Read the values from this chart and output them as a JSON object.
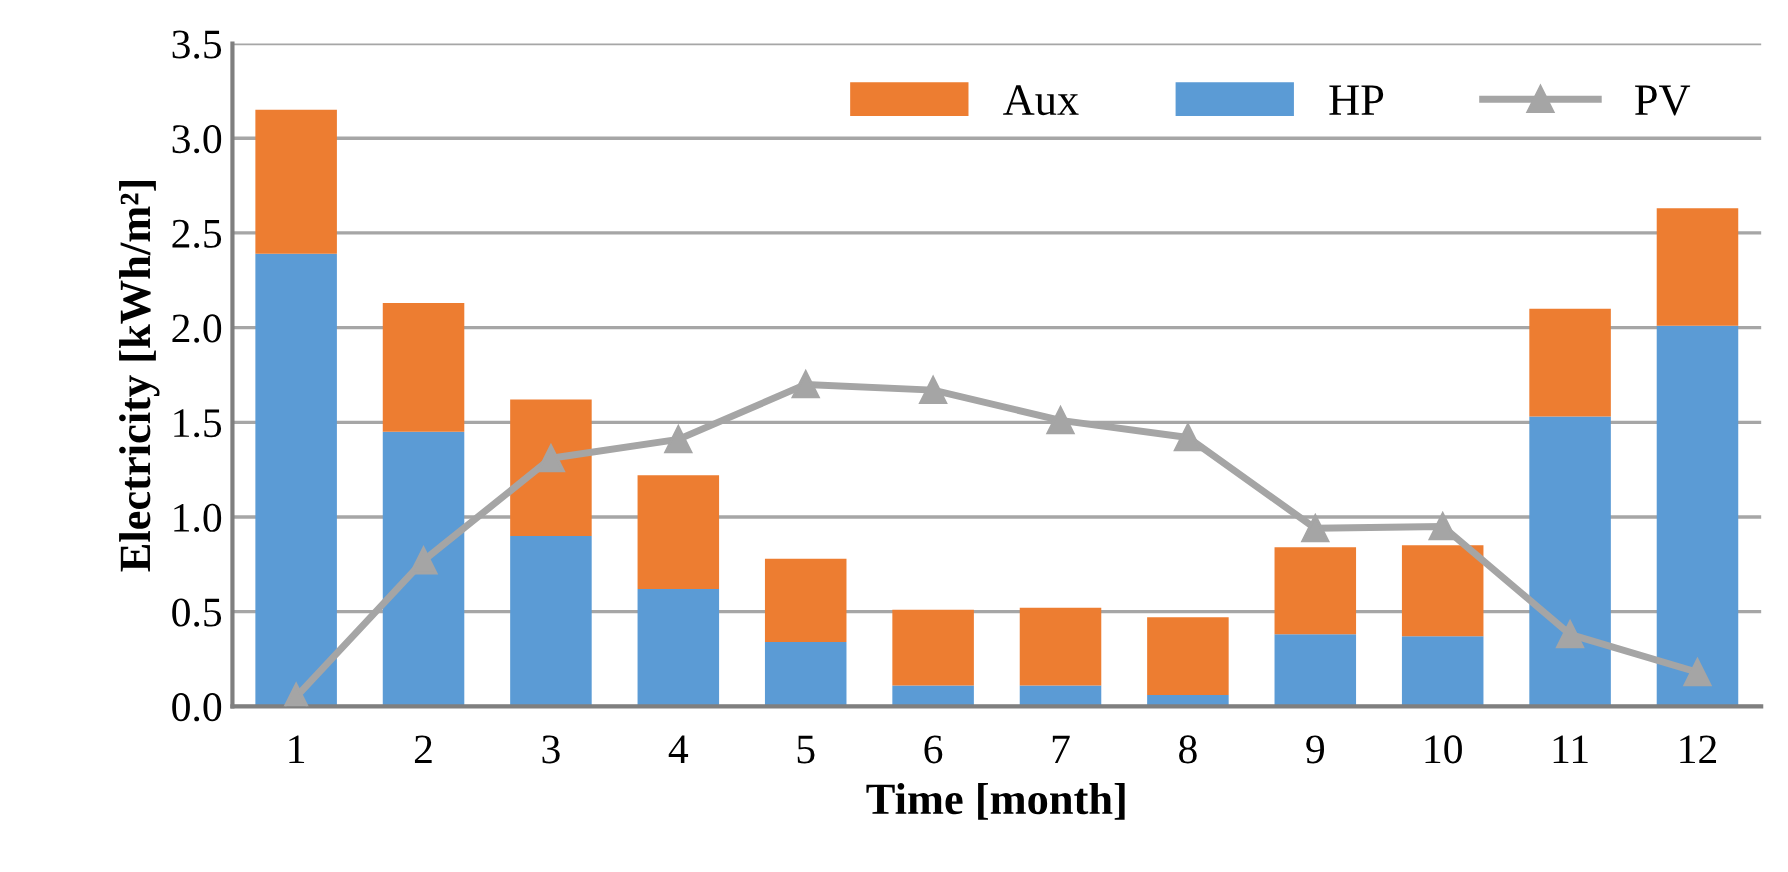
{
  "chart_data": {
    "type": "bar",
    "stacked": true,
    "xlabel": "Time [month]",
    "ylabel": "Electricity [kWh/m²]",
    "categories": [
      "1",
      "2",
      "3",
      "4",
      "5",
      "6",
      "7",
      "8",
      "9",
      "10",
      "11",
      "12"
    ],
    "series": [
      {
        "name": "HP",
        "color": "#5b9bd5",
        "values": [
          2.39,
          1.45,
          0.9,
          0.62,
          0.34,
          0.11,
          0.11,
          0.06,
          0.38,
          0.37,
          1.53,
          2.01
        ]
      },
      {
        "name": "Aux",
        "color": "#ed7d31",
        "values": [
          0.76,
          0.68,
          0.72,
          0.6,
          0.44,
          0.4,
          0.41,
          0.41,
          0.46,
          0.48,
          0.57,
          0.62
        ]
      },
      {
        "name": "PV",
        "type": "line",
        "color": "#a5a5a5",
        "marker": "triangle",
        "line_style": "solid",
        "values": [
          0.05,
          0.77,
          1.31,
          1.41,
          1.7,
          1.67,
          1.51,
          1.42,
          0.94,
          0.95,
          0.38,
          0.18
        ]
      }
    ],
    "ylim": [
      0,
      3.5
    ],
    "yticks": [
      {
        "value": 0,
        "label": "0.0"
      },
      {
        "value": 0.5,
        "label": "0.5"
      },
      {
        "value": 1,
        "label": "1.0"
      },
      {
        "value": 1.5,
        "label": "1.5"
      },
      {
        "value": 2,
        "label": "2.0"
      },
      {
        "value": 2.5,
        "label": "2.5"
      },
      {
        "value": 3,
        "label": "3.0"
      },
      {
        "value": 3.5,
        "label": "3.5"
      }
    ],
    "grid": "y",
    "legend": "top right"
  }
}
